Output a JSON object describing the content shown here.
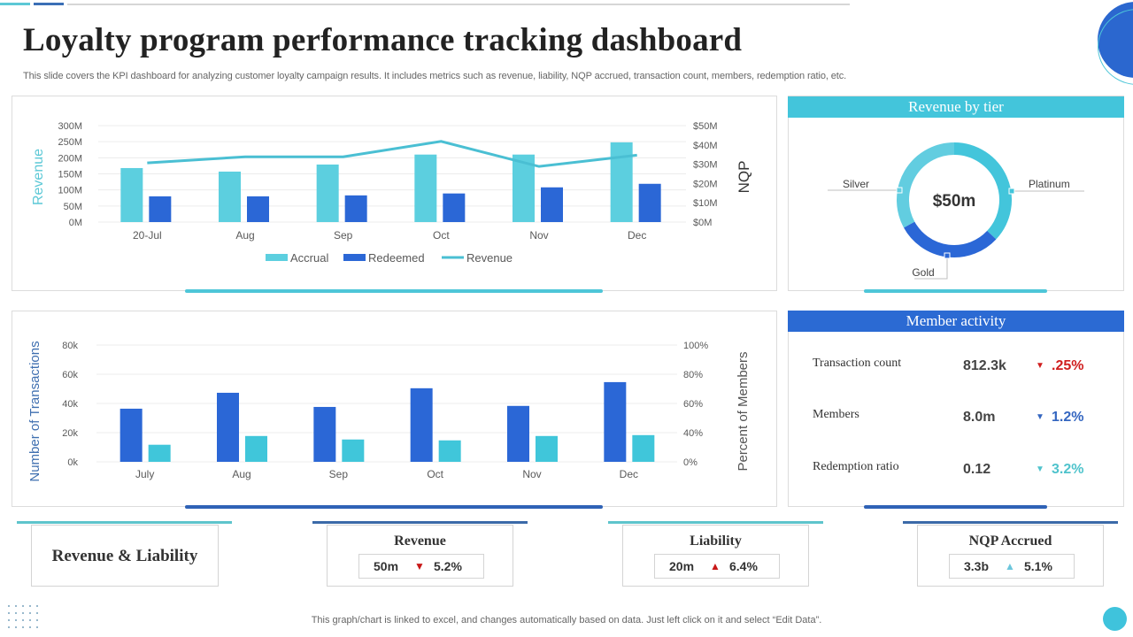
{
  "page": {
    "title": "Loyalty program performance tracking dashboard",
    "subtitle": "This slide covers the KPI dashboard for analyzing customer loyalty campaign results. It includes metrics such as revenue, liability, NQP accrued, transaction count, members, redemption ratio, etc.",
    "footer": "This graph/chart is linked to excel,  and changes automatically based on data. Just left click on it and select “Edit Data”."
  },
  "colors": {
    "accrual": "#5ccfdf",
    "redeemed": "#2b67d6",
    "revenue_line": "#4abfd3",
    "transactions": "#2b67d6",
    "members_pct": "#40c6da",
    "down_red": "#d01e1e",
    "down_blue": "#3466c0",
    "down_teal": "#4fc3cc",
    "up_red": "#c81818",
    "up_teal": "#6cc6dc"
  },
  "chart_data": [
    {
      "type": "bar",
      "id": "revenue-nqp",
      "categories": [
        "20-Jul",
        "Aug",
        "Sep",
        "Oct",
        "Nov",
        "Dec"
      ],
      "series": [
        {
          "name": "Accrual",
          "type": "bar",
          "axis": "left",
          "values": [
            168,
            157,
            179,
            210,
            210,
            248
          ]
        },
        {
          "name": "Redeemed",
          "type": "bar",
          "axis": "left",
          "values": [
            80,
            80,
            83,
            89,
            108,
            119
          ]
        },
        {
          "name": "Revenue",
          "type": "line",
          "axis": "left",
          "values": [
            184,
            203,
            203,
            251,
            173,
            208
          ]
        }
      ],
      "ylabel": "Revenue",
      "y2label": "NQP",
      "ylim": [
        0,
        300
      ],
      "y2lim": [
        0,
        50
      ],
      "yticks": [
        "0M",
        "50M",
        "100M",
        "150M",
        "200M",
        "250M",
        "300M"
      ],
      "y2ticks": [
        "$0M",
        "$10M",
        "$20M",
        "$30M",
        "$40M",
        "$50M"
      ],
      "legend": [
        "Accrual",
        "Redeemed",
        "Revenue"
      ],
      "legend_position": "bottom",
      "grid": true
    },
    {
      "type": "bar",
      "id": "transactions-members",
      "categories": [
        "July",
        "Aug",
        "Sep",
        "Oct",
        "Nov",
        "Dec"
      ],
      "series": [
        {
          "name": "Number of Transactions",
          "type": "bar",
          "axis": "left",
          "values": [
            36.4,
            47.3,
            37.6,
            50.4,
            38.3,
            54.6
          ]
        },
        {
          "name": "Percent of Members",
          "type": "bar",
          "axis": "left",
          "values": [
            11.7,
            17.7,
            15.3,
            14.7,
            17.7,
            18.3
          ]
        }
      ],
      "ylabel": "Number of Transactions",
      "y2label": "Percent of Members",
      "ylim": [
        0,
        80
      ],
      "yticks": [
        "0k",
        "20k",
        "40k",
        "60k",
        "80k"
      ],
      "y2ticks": [
        "0%",
        "",
        "40%",
        "60%",
        "80%",
        "100%"
      ],
      "legend_position": "none",
      "grid": true
    },
    {
      "type": "pie",
      "id": "revenue-by-tier",
      "title": "Revenue by tier",
      "center_label": "$50m",
      "slices": [
        {
          "label": "Platinum",
          "value": 37,
          "color": "#43c5db"
        },
        {
          "label": "Gold",
          "value": 30,
          "color": "#2b67d6"
        },
        {
          "label": "Silver",
          "value": 33,
          "color": "#62cde0"
        }
      ]
    }
  ],
  "member_activity": {
    "title": "Member activity",
    "rows": [
      {
        "label": "Transaction count",
        "value": "812.3k",
        "direction": "down",
        "change": ".25%",
        "color": "#d01e1e"
      },
      {
        "label": "Members",
        "value": "8.0m",
        "direction": "down",
        "change": "1.2%",
        "color": "#3466c0"
      },
      {
        "label": "Redemption ratio",
        "value": "0.12",
        "direction": "down",
        "change": "3.2%",
        "color": "#4fc3cc"
      }
    ]
  },
  "kpis": {
    "section_title": "Revenue & Liability",
    "cards": [
      {
        "title": "Revenue",
        "value": "50m",
        "direction": "down",
        "arrow": "▼",
        "change": "5.2%",
        "color": "#c81818"
      },
      {
        "title": "Liability",
        "value": "20m",
        "direction": "up",
        "arrow": "▲",
        "change": "6.4%",
        "color": "#c81818"
      },
      {
        "title": "NQP Accrued",
        "value": "3.3b",
        "direction": "up",
        "arrow": "▲",
        "change": "5.1%",
        "color": "#6cc6dc"
      }
    ]
  }
}
